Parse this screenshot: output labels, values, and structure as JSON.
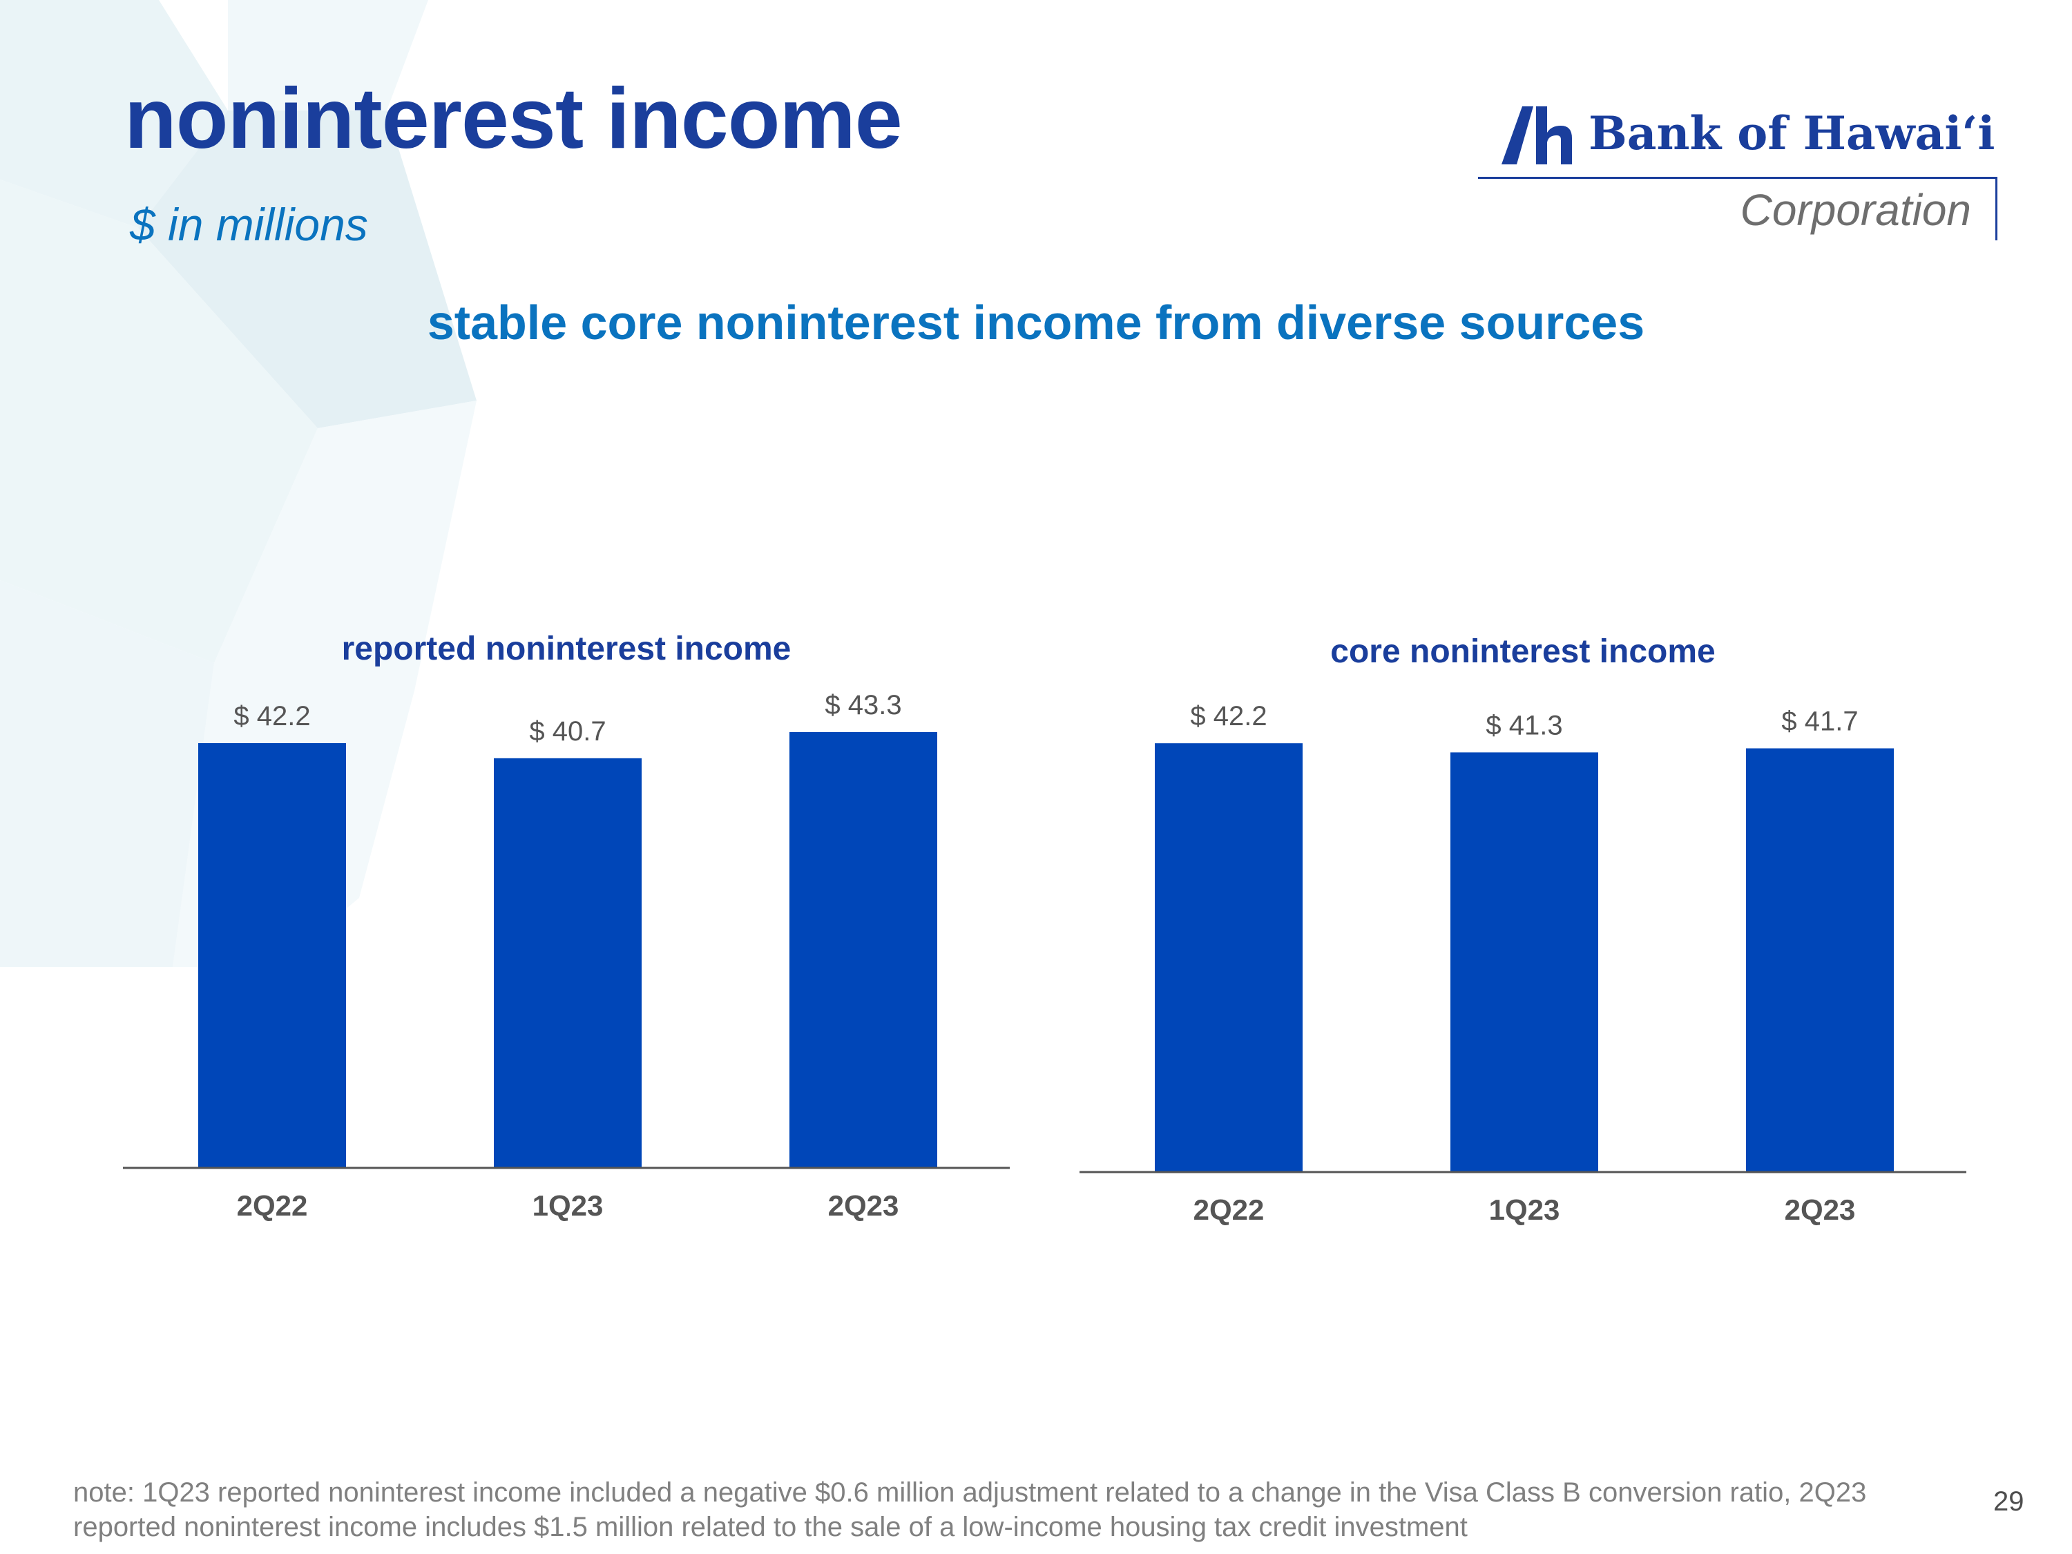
{
  "slide": {
    "title": "noninterest income",
    "subtitle": "$ in millions",
    "headline": "stable core noninterest income from diverse sources",
    "note": "note: 1Q23 reported noninterest income included a negative $0.6 million adjustment related to a change in the Visa Class B conversion ratio, 2Q23 reported noninterest income includes $1.5 million related to the sale of a low-income housing tax credit investment",
    "page_number": "29"
  },
  "logo": {
    "name": "Bank of Hawai‘i",
    "sub": "Corporation"
  },
  "colors": {
    "bar": "#0046b8",
    "title": "#1a3e9c",
    "accent": "#0a73bf",
    "label": "#555555",
    "axis": "#555555"
  },
  "chart_data": [
    {
      "type": "bar",
      "title": "reported noninterest income",
      "categories": [
        "2Q22",
        "1Q23",
        "2Q23"
      ],
      "values": [
        42.2,
        40.7,
        43.3
      ],
      "labels": [
        "$ 42.2",
        "$ 40.7",
        "$ 43.3"
      ],
      "xlabel": "",
      "ylabel": "",
      "ylim": [
        0,
        43.3
      ],
      "grid": false,
      "legend": "none"
    },
    {
      "type": "bar",
      "title": "core noninterest income",
      "categories": [
        "2Q22",
        "1Q23",
        "2Q23"
      ],
      "values": [
        42.2,
        41.3,
        41.7
      ],
      "labels": [
        "$ 42.2",
        "$ 41.3",
        "$ 41.7"
      ],
      "xlabel": "",
      "ylabel": "",
      "ylim": [
        0,
        43.3
      ],
      "grid": false,
      "legend": "none"
    }
  ]
}
